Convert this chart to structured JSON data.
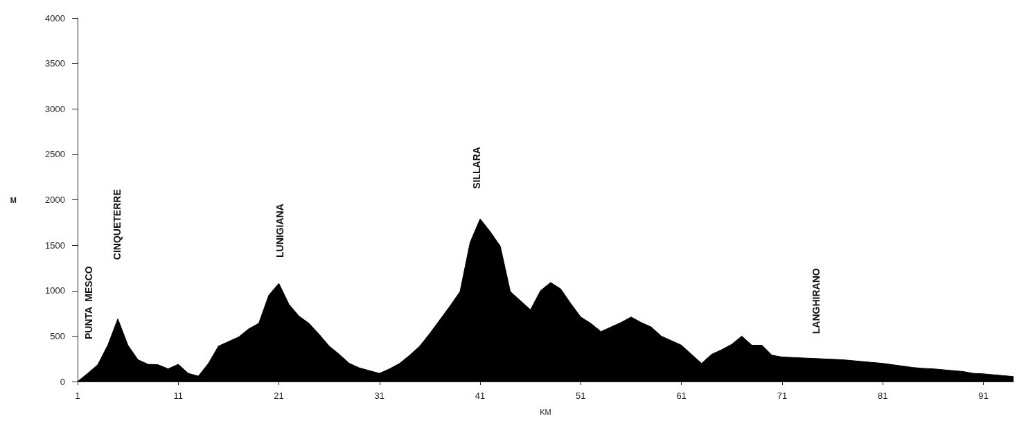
{
  "chart_data": {
    "type": "area",
    "xlabel": "KM",
    "ylabel": "M",
    "x": [
      1,
      2,
      3,
      4,
      5,
      6,
      7,
      8,
      9,
      10,
      11,
      12,
      13,
      14,
      15,
      16,
      17,
      18,
      19,
      20,
      21,
      22,
      23,
      24,
      25,
      26,
      27,
      28,
      29,
      30,
      31,
      32,
      33,
      34,
      35,
      36,
      37,
      38,
      39,
      40,
      41,
      42,
      43,
      44,
      45,
      46,
      47,
      48,
      49,
      50,
      51,
      52,
      53,
      54,
      55,
      56,
      57,
      58,
      59,
      60,
      61,
      62,
      63,
      64,
      65,
      66,
      67,
      68,
      69,
      70,
      71,
      72,
      73,
      74,
      75,
      76,
      77,
      78,
      79,
      80,
      81,
      82,
      83,
      84,
      85,
      86,
      87,
      88,
      89,
      90,
      91,
      92,
      93,
      94
    ],
    "series": [
      {
        "color": "#000000",
        "values": [
          0,
          90,
          185,
          400,
          690,
          400,
          240,
          190,
          185,
          140,
          190,
          90,
          60,
          200,
          390,
          440,
          490,
          580,
          640,
          950,
          1080,
          850,
          720,
          640,
          520,
          390,
          300,
          200,
          150,
          120,
          90,
          140,
          200,
          290,
          390,
          530,
          680,
          830,
          990,
          1530,
          1790,
          1650,
          1490,
          990,
          890,
          790,
          1000,
          1090,
          1020,
          860,
          710,
          640,
          550,
          600,
          650,
          710,
          650,
          600,
          500,
          450,
          400,
          300,
          200,
          300,
          350,
          410,
          500,
          400,
          400,
          290,
          270,
          265,
          260,
          255,
          250,
          245,
          240,
          230,
          220,
          210,
          200,
          185,
          170,
          155,
          145,
          140,
          130,
          120,
          110,
          90,
          85,
          75,
          65,
          55
        ]
      }
    ],
    "xlim": [
      1,
      94
    ],
    "xticks": [
      1,
      11,
      21,
      31,
      41,
      51,
      61,
      71,
      81,
      91
    ],
    "ylim": [
      0,
      4000
    ],
    "yticks": [
      0,
      500,
      1000,
      1500,
      2000,
      2500,
      3000,
      3500,
      4000
    ],
    "grid": false,
    "annotations": [
      "PUNTA  MESCO",
      "CINQUETERRE",
      "LUNIGIANA",
      "SILLARA",
      "LANGHIRANO"
    ]
  }
}
